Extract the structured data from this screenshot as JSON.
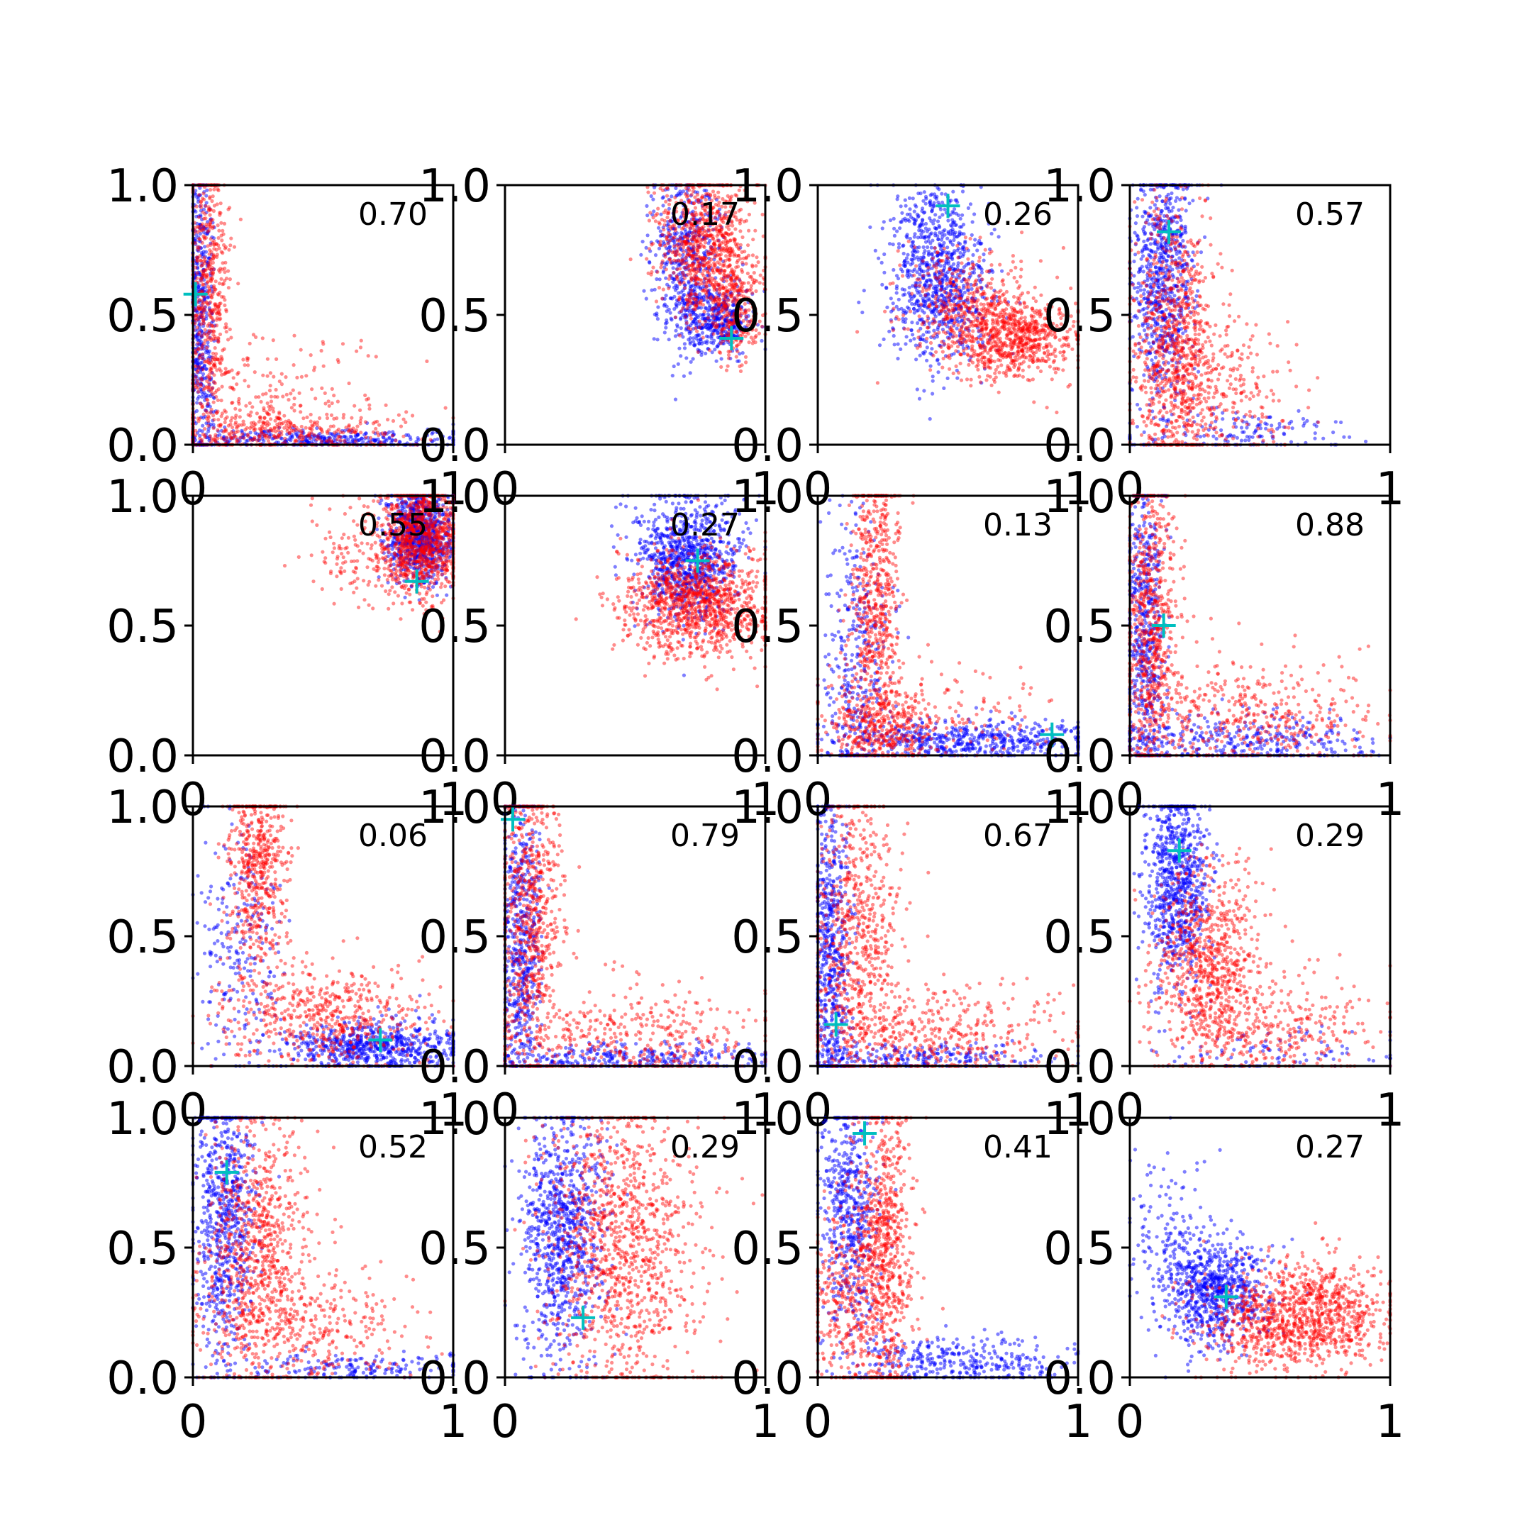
{
  "colors": {
    "series_a": "#0000ff",
    "series_b": "#ff0000",
    "marker": "#00bfbf",
    "axis": "#000000",
    "background": "#ffffff"
  },
  "chart_data": {
    "type": "scatter",
    "layout": {
      "rows": 4,
      "cols": 4
    },
    "xlim": [
      0,
      1
    ],
    "ylim": [
      0,
      1
    ],
    "x_tick_labels": [
      "0",
      "1"
    ],
    "y_tick_labels": [
      "0.0",
      "0.5",
      "1.0"
    ],
    "point_counts": {
      "series_a": 900,
      "series_b": 1100
    },
    "panels": [
      {
        "label": "0.70",
        "marker": [
          0.01,
          0.58
        ],
        "a": [
          {
            "m": [
              0.03,
              0.45
            ],
            "s": [
              0.025,
              0.32
            ],
            "w": 0.55
          },
          {
            "m": [
              0.45,
              0.02
            ],
            "s": [
              0.3,
              0.02
            ],
            "w": 0.45
          }
        ],
        "b": [
          {
            "m": [
              0.06,
              0.6
            ],
            "s": [
              0.04,
              0.3
            ],
            "w": 0.5
          },
          {
            "m": [
              0.35,
              0.05
            ],
            "s": [
              0.25,
              0.05
            ],
            "w": 0.35
          },
          {
            "m": [
              0.3,
              0.2
            ],
            "s": [
              0.18,
              0.12
            ],
            "w": 0.15
          }
        ]
      },
      {
        "label": "0.17",
        "marker": [
          0.87,
          0.41
        ],
        "a": [
          {
            "m": [
              0.7,
              0.7
            ],
            "s": [
              0.07,
              0.17
            ],
            "w": 0.6
          },
          {
            "m": [
              0.82,
              0.48
            ],
            "s": [
              0.06,
              0.06
            ],
            "w": 0.4
          }
        ],
        "b": [
          {
            "m": [
              0.76,
              0.78
            ],
            "s": [
              0.09,
              0.15
            ],
            "w": 0.7
          },
          {
            "m": [
              0.88,
              0.55
            ],
            "s": [
              0.05,
              0.12
            ],
            "w": 0.3
          }
        ]
      },
      {
        "label": "0.26",
        "marker": [
          0.5,
          0.92
        ],
        "a": [
          {
            "m": [
              0.47,
              0.6
            ],
            "s": [
              0.1,
              0.14
            ],
            "w": 0.8
          },
          {
            "m": [
              0.42,
              0.85
            ],
            "s": [
              0.08,
              0.08
            ],
            "w": 0.2
          }
        ],
        "b": [
          {
            "m": [
              0.75,
              0.42
            ],
            "s": [
              0.12,
              0.08
            ],
            "w": 0.7
          },
          {
            "m": [
              0.55,
              0.55
            ],
            "s": [
              0.12,
              0.12
            ],
            "w": 0.3
          }
        ]
      },
      {
        "label": "0.57",
        "marker": [
          0.15,
          0.82
        ],
        "a": [
          {
            "m": [
              0.12,
              0.65
            ],
            "s": [
              0.06,
              0.25
            ],
            "w": 0.85
          },
          {
            "m": [
              0.45,
              0.05
            ],
            "s": [
              0.2,
              0.04
            ],
            "w": 0.15
          }
        ],
        "b": [
          {
            "m": [
              0.17,
              0.4
            ],
            "s": [
              0.08,
              0.25
            ],
            "w": 0.75
          },
          {
            "m": [
              0.35,
              0.2
            ],
            "s": [
              0.15,
              0.15
            ],
            "w": 0.25
          }
        ]
      },
      {
        "label": "0.55",
        "marker": [
          0.86,
          0.67
        ],
        "a": [
          {
            "m": [
              0.87,
              0.85
            ],
            "s": [
              0.06,
              0.09
            ],
            "w": 1.0
          }
        ],
        "b": [
          {
            "m": [
              0.87,
              0.83
            ],
            "s": [
              0.08,
              0.11
            ],
            "w": 0.9
          },
          {
            "m": [
              0.62,
              0.8
            ],
            "s": [
              0.1,
              0.1
            ],
            "w": 0.1
          }
        ]
      },
      {
        "label": "0.27",
        "marker": [
          0.74,
          0.75
        ],
        "a": [
          {
            "m": [
              0.7,
              0.77
            ],
            "s": [
              0.1,
              0.12
            ],
            "w": 1.0
          }
        ],
        "b": [
          {
            "m": [
              0.78,
              0.58
            ],
            "s": [
              0.13,
              0.1
            ],
            "w": 0.8
          },
          {
            "m": [
              0.6,
              0.6
            ],
            "s": [
              0.1,
              0.1
            ],
            "w": 0.2
          }
        ]
      },
      {
        "label": "0.13",
        "marker": [
          0.9,
          0.08
        ],
        "a": [
          {
            "m": [
              0.6,
              0.06
            ],
            "s": [
              0.25,
              0.04
            ],
            "w": 0.6
          },
          {
            "m": [
              0.15,
              0.35
            ],
            "s": [
              0.07,
              0.28
            ],
            "w": 0.4
          }
        ],
        "b": [
          {
            "m": [
              0.22,
              0.6
            ],
            "s": [
              0.05,
              0.3
            ],
            "w": 0.55
          },
          {
            "m": [
              0.25,
              0.12
            ],
            "s": [
              0.12,
              0.08
            ],
            "w": 0.35
          },
          {
            "m": [
              0.5,
              0.15
            ],
            "s": [
              0.2,
              0.1
            ],
            "w": 0.1
          }
        ]
      },
      {
        "label": "0.88",
        "marker": [
          0.13,
          0.5
        ],
        "a": [
          {
            "m": [
              0.06,
              0.45
            ],
            "s": [
              0.04,
              0.3
            ],
            "w": 0.6
          },
          {
            "m": [
              0.45,
              0.05
            ],
            "s": [
              0.25,
              0.05
            ],
            "w": 0.4
          }
        ],
        "b": [
          {
            "m": [
              0.08,
              0.5
            ],
            "s": [
              0.05,
              0.3
            ],
            "w": 0.6
          },
          {
            "m": [
              0.45,
              0.15
            ],
            "s": [
              0.25,
              0.12
            ],
            "w": 0.4
          }
        ]
      },
      {
        "label": "0.06",
        "marker": [
          0.72,
          0.1
        ],
        "a": [
          {
            "m": [
              0.7,
              0.08
            ],
            "s": [
              0.18,
              0.05
            ],
            "w": 0.75
          },
          {
            "m": [
              0.18,
              0.5
            ],
            "s": [
              0.08,
              0.25
            ],
            "w": 0.25
          }
        ],
        "b": [
          {
            "m": [
              0.25,
              0.75
            ],
            "s": [
              0.06,
              0.2
            ],
            "w": 0.5
          },
          {
            "m": [
              0.5,
              0.18
            ],
            "s": [
              0.2,
              0.1
            ],
            "w": 0.5
          }
        ]
      },
      {
        "label": "0.79",
        "marker": [
          0.03,
          0.95
        ],
        "a": [
          {
            "m": [
              0.06,
              0.5
            ],
            "s": [
              0.04,
              0.3
            ],
            "w": 0.65
          },
          {
            "m": [
              0.5,
              0.03
            ],
            "s": [
              0.28,
              0.03
            ],
            "w": 0.35
          }
        ],
        "b": [
          {
            "m": [
              0.1,
              0.55
            ],
            "s": [
              0.06,
              0.3
            ],
            "w": 0.6
          },
          {
            "m": [
              0.45,
              0.1
            ],
            "s": [
              0.28,
              0.1
            ],
            "w": 0.4
          }
        ]
      },
      {
        "label": "0.67",
        "marker": [
          0.07,
          0.16
        ],
        "a": [
          {
            "m": [
              0.05,
              0.4
            ],
            "s": [
              0.04,
              0.32
            ],
            "w": 0.7
          },
          {
            "m": [
              0.4,
              0.03
            ],
            "s": [
              0.25,
              0.03
            ],
            "w": 0.3
          }
        ],
        "b": [
          {
            "m": [
              0.15,
              0.5
            ],
            "s": [
              0.08,
              0.3
            ],
            "w": 0.6
          },
          {
            "m": [
              0.45,
              0.12
            ],
            "s": [
              0.25,
              0.1
            ],
            "w": 0.4
          }
        ]
      },
      {
        "label": "0.29",
        "marker": [
          0.19,
          0.83
        ],
        "a": [
          {
            "m": [
              0.18,
              0.7
            ],
            "s": [
              0.06,
              0.2
            ],
            "w": 0.9
          },
          {
            "m": [
              0.6,
              0.05
            ],
            "s": [
              0.25,
              0.05
            ],
            "w": 0.1
          }
        ],
        "b": [
          {
            "m": [
              0.3,
              0.4
            ],
            "s": [
              0.1,
              0.2
            ],
            "w": 0.7
          },
          {
            "m": [
              0.55,
              0.15
            ],
            "s": [
              0.2,
              0.1
            ],
            "w": 0.3
          }
        ]
      },
      {
        "label": "0.52",
        "marker": [
          0.13,
          0.79
        ],
        "a": [
          {
            "m": [
              0.12,
              0.6
            ],
            "s": [
              0.06,
              0.28
            ],
            "w": 0.8
          },
          {
            "m": [
              0.6,
              0.04
            ],
            "s": [
              0.25,
              0.03
            ],
            "w": 0.2
          }
        ],
        "b": [
          {
            "m": [
              0.25,
              0.5
            ],
            "s": [
              0.1,
              0.25
            ],
            "w": 0.7
          },
          {
            "m": [
              0.45,
              0.2
            ],
            "s": [
              0.2,
              0.12
            ],
            "w": 0.3
          }
        ]
      },
      {
        "label": "0.29",
        "marker": [
          0.3,
          0.23
        ],
        "a": [
          {
            "m": [
              0.22,
              0.55
            ],
            "s": [
              0.08,
              0.25
            ],
            "w": 1.0
          }
        ],
        "b": [
          {
            "m": [
              0.45,
              0.5
            ],
            "s": [
              0.15,
              0.28
            ],
            "w": 1.0
          }
        ]
      },
      {
        "label": "0.41",
        "marker": [
          0.18,
          0.94
        ],
        "a": [
          {
            "m": [
              0.12,
              0.65
            ],
            "s": [
              0.06,
              0.25
            ],
            "w": 0.6
          },
          {
            "m": [
              0.55,
              0.06
            ],
            "s": [
              0.22,
              0.05
            ],
            "w": 0.4
          }
        ],
        "b": [
          {
            "m": [
              0.25,
              0.5
            ],
            "s": [
              0.06,
              0.3
            ],
            "w": 0.7
          },
          {
            "m": [
              0.1,
              0.3
            ],
            "s": [
              0.08,
              0.2
            ],
            "w": 0.3
          }
        ]
      },
      {
        "label": "0.27",
        "marker": [
          0.37,
          0.31
        ],
        "a": [
          {
            "m": [
              0.33,
              0.33
            ],
            "s": [
              0.1,
              0.1
            ],
            "w": 0.85
          },
          {
            "m": [
              0.15,
              0.55
            ],
            "s": [
              0.08,
              0.15
            ],
            "w": 0.15
          }
        ],
        "b": [
          {
            "m": [
              0.72,
              0.25
            ],
            "s": [
              0.14,
              0.1
            ],
            "w": 0.7
          },
          {
            "m": [
              0.5,
              0.2
            ],
            "s": [
              0.12,
              0.1
            ],
            "w": 0.3
          }
        ]
      }
    ]
  }
}
